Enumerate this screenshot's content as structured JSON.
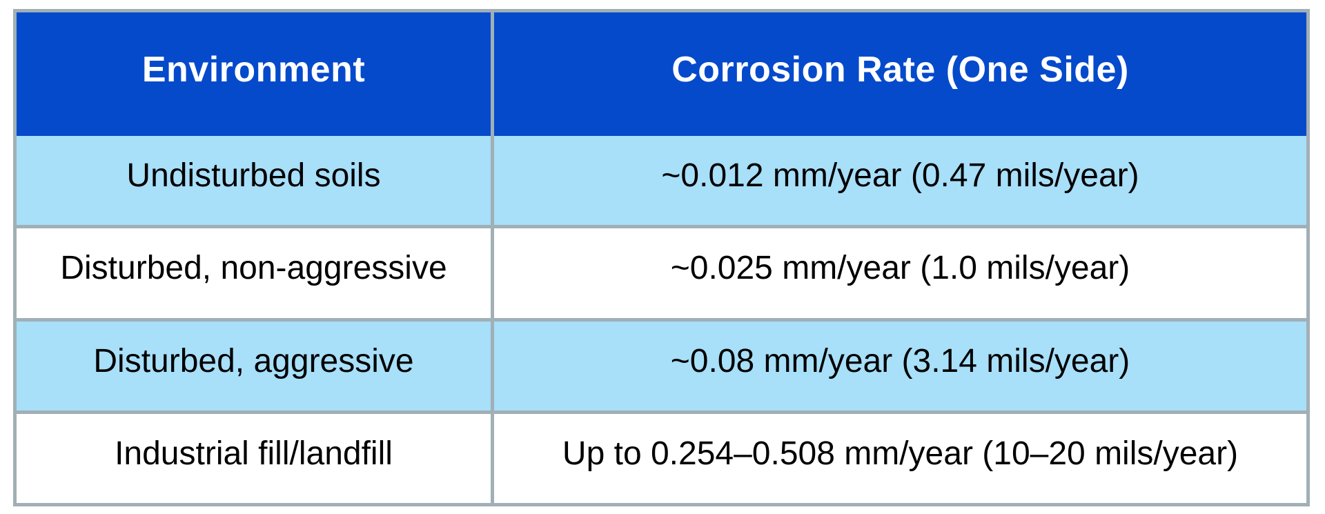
{
  "table": {
    "header": {
      "environment": "Environment",
      "rate": "Corrosion Rate (One Side)"
    },
    "rows": [
      {
        "environment": "Undisturbed soils",
        "rate": "~0.012 mm/year (0.47 mils/year)"
      },
      {
        "environment": "Disturbed, non-aggressive",
        "rate": "~0.025 mm/year (1.0 mils/year)"
      },
      {
        "environment": "Disturbed, aggressive",
        "rate": "~0.08 mm/year (3.14 mils/year)"
      },
      {
        "environment": "Industrial fill/landfill",
        "rate": "Up to 0.254–0.508 mm/year (10–20 mils/year)"
      }
    ],
    "colors": {
      "header_bg": "#054acb",
      "header_text": "#ffffff",
      "band_light_blue": "#a8dff9",
      "band_white": "#ffffff",
      "gridline": "#a1afb6",
      "body_text": "#000000"
    }
  }
}
